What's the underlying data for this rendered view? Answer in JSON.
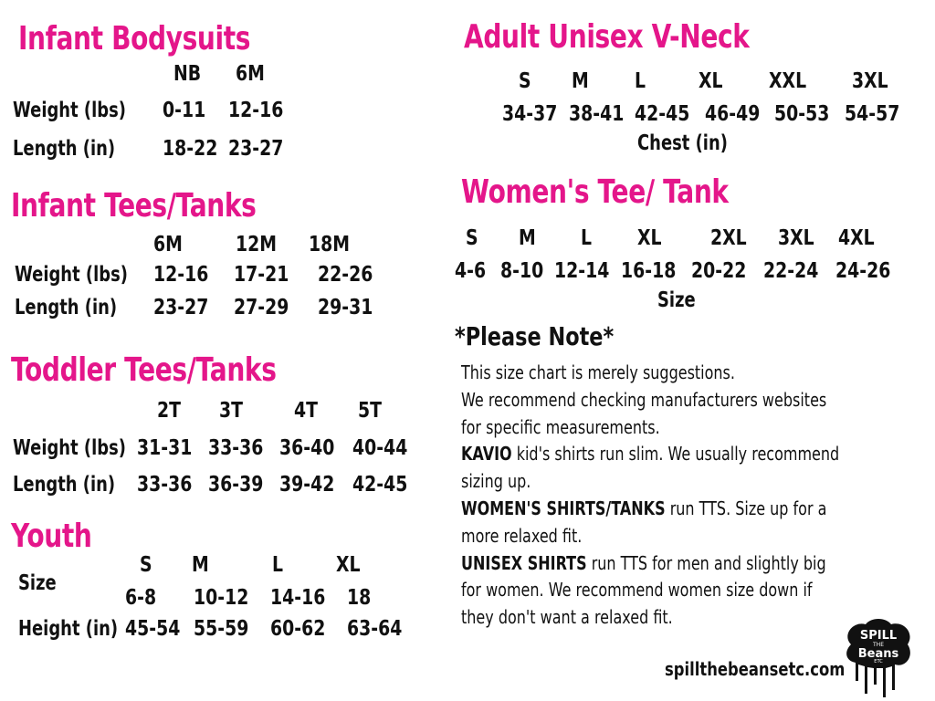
{
  "infant_bodysuits": {
    "title": "Infant Bodysuits",
    "sizes": [
      "NB",
      "6M"
    ],
    "rows": [
      {
        "label": "Weight (lbs)",
        "values": [
          "0-11",
          "12-16"
        ]
      },
      {
        "label": "Length (in)",
        "values": [
          "18-22",
          "23-27"
        ]
      }
    ]
  },
  "infant_tees": {
    "title": "Infant Tees/Tanks",
    "sizes": [
      "6M",
      "12M",
      "18M"
    ],
    "rows": [
      {
        "label": "Weight (lbs)",
        "values": [
          "12-16",
          "17-21",
          "22-26"
        ]
      },
      {
        "label": "Length (in)",
        "values": [
          "23-27",
          "27-29",
          "29-31"
        ]
      }
    ]
  },
  "toddler_tees": {
    "title": "Toddler  Tees/Tanks",
    "sizes": [
      "2T",
      "3T",
      "4T",
      "5T"
    ],
    "rows": [
      {
        "label": "Weight (lbs)",
        "values": [
          "31-31",
          "33-36",
          "36-40",
          "40-44"
        ]
      },
      {
        "label": "Length (in)",
        "values": [
          "33-36",
          "36-39",
          "39-42",
          "42-45"
        ]
      }
    ]
  },
  "youth": {
    "title": "Youth",
    "sizes": [
      "S",
      "M",
      "L",
      "XL"
    ],
    "rows": [
      {
        "label": "Size",
        "values": [
          "6-8",
          "10-12",
          "14-16",
          "18"
        ]
      },
      {
        "label": "Height (in)",
        "values": [
          "45-54",
          "55-59",
          "60-62",
          "63-64"
        ]
      }
    ]
  },
  "adult_vneck": {
    "title": "Adult Unisex V-Neck",
    "sizes": [
      "S",
      "M",
      "L",
      "XL",
      "XXL",
      "3XL"
    ],
    "values": [
      "34-37",
      "38-41",
      "42-45",
      "46-49",
      "50-53",
      "54-57"
    ],
    "caption": "Chest (in)"
  },
  "womens_tee": {
    "title": "Women's Tee/ Tank",
    "sizes": [
      "S",
      "M",
      "L",
      "XL",
      "2XL",
      "3XL",
      "4XL"
    ],
    "values": [
      "4-6",
      "8-10",
      "12-14",
      "16-18",
      "20-22",
      "22-24",
      "24-26"
    ],
    "caption": "Size"
  },
  "notes": {
    "heading": "*Please Note*",
    "lines": [
      {
        "bold": "",
        "text": "This size chart is merely suggestions."
      },
      {
        "bold": "",
        "text": "We recommend checking manufacturers websites"
      },
      {
        "bold": "",
        "text": "for specific measurements."
      },
      {
        "bold": "KAVIO",
        "text": " kid's shirts run slim. We usually recommend"
      },
      {
        "bold": "",
        "text": "sizing up."
      },
      {
        "bold": "WOMEN'S SHIRTS/TANKS",
        "text": " run TTS. Size up for a"
      },
      {
        "bold": "",
        "text": "more relaxed fit."
      },
      {
        "bold": "UNISEX SHIRTS",
        "text": " run TTS for men and slightly big"
      },
      {
        "bold": "",
        "text": "for women. We recommend women size down if"
      },
      {
        "bold": "",
        "text": "they don't want a relaxed fit."
      }
    ]
  },
  "footer": {
    "website": "spillthebeansetc.com",
    "logo_text": "SPILL THE BEANS ETC",
    "logo_icon": "paint-drip-cloud-logo"
  },
  "colors": {
    "title": "#e4168a",
    "text": "#111111"
  }
}
